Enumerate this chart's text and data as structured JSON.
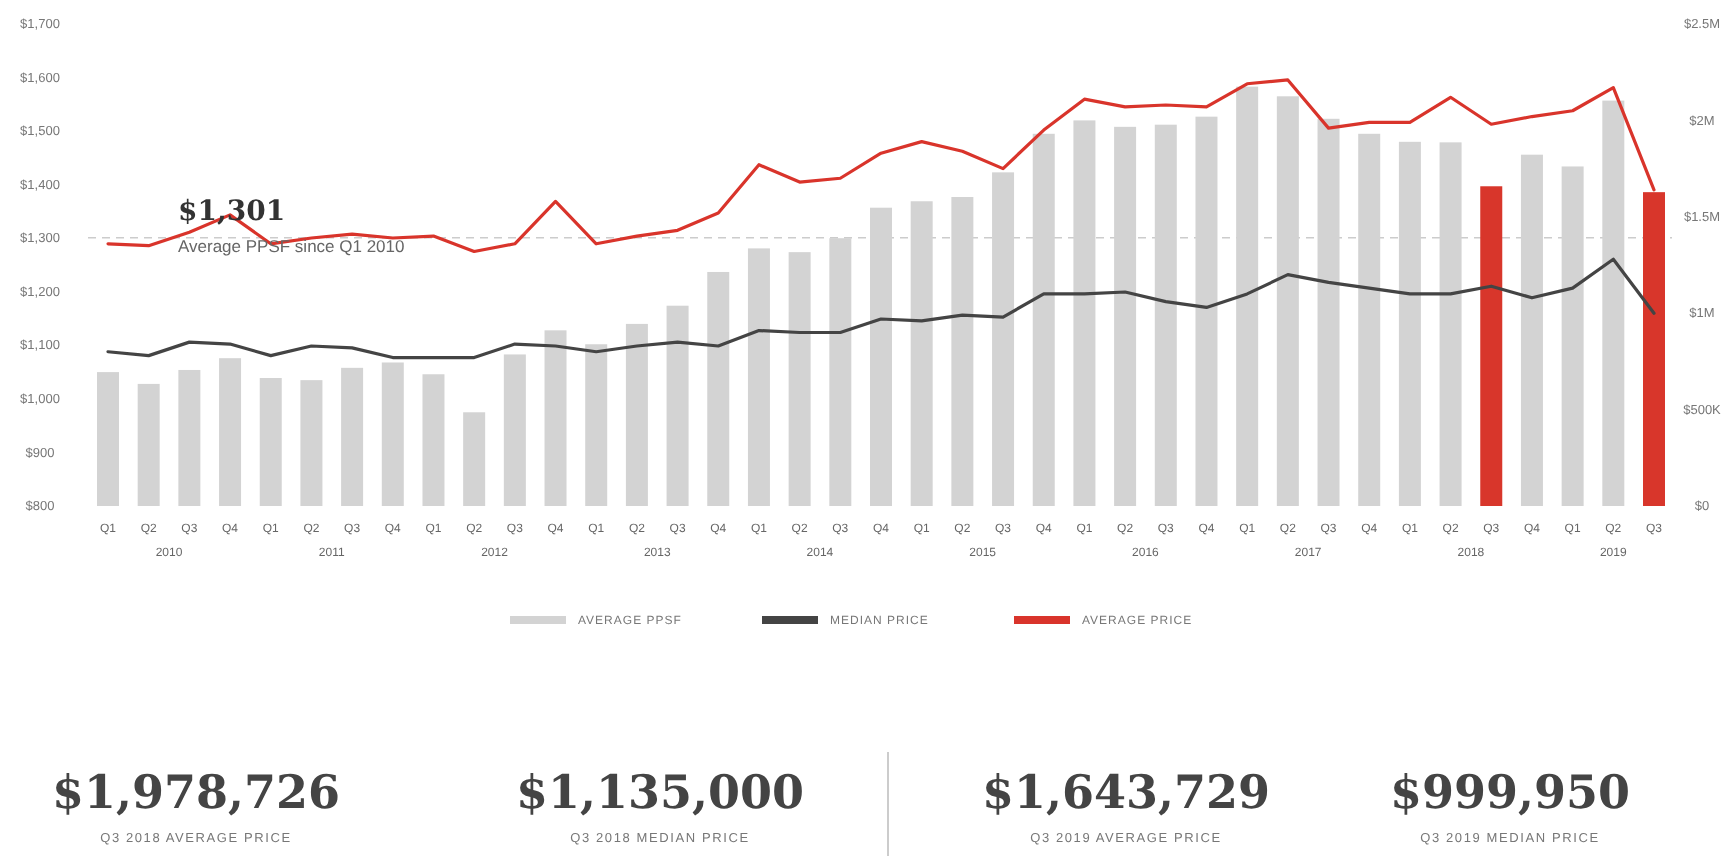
{
  "chart_data": {
    "type": "bar",
    "categories": [
      "Q1",
      "Q2",
      "Q3",
      "Q4",
      "Q1",
      "Q2",
      "Q3",
      "Q4",
      "Q1",
      "Q2",
      "Q3",
      "Q4",
      "Q1",
      "Q2",
      "Q3",
      "Q4",
      "Q1",
      "Q2",
      "Q3",
      "Q4",
      "Q1",
      "Q2",
      "Q3",
      "Q4",
      "Q1",
      "Q2",
      "Q3",
      "Q4",
      "Q1",
      "Q2",
      "Q3",
      "Q4",
      "Q1",
      "Q2",
      "Q3",
      "Q4",
      "Q1",
      "Q2",
      "Q3"
    ],
    "series": [
      {
        "name": "AVERAGE PPSF",
        "color": "#d3d3d3",
        "colors": [
          "#d3d3d3",
          "#d3d3d3",
          "#d3d3d3",
          "#d3d3d3",
          "#d3d3d3",
          "#d3d3d3",
          "#d3d3d3",
          "#d3d3d3",
          "#d3d3d3",
          "#d3d3d3",
          "#d3d3d3",
          "#d3d3d3",
          "#d3d3d3",
          "#d3d3d3",
          "#d3d3d3",
          "#d3d3d3",
          "#d3d3d3",
          "#d3d3d3",
          "#d3d3d3",
          "#d3d3d3",
          "#d3d3d3",
          "#d3d3d3",
          "#d3d3d3",
          "#d3d3d3",
          "#d3d3d3",
          "#d3d3d3",
          "#d3d3d3",
          "#d3d3d3",
          "#d3d3d3",
          "#d3d3d3",
          "#d3d3d3",
          "#d3d3d3",
          "#d3d3d3",
          "#d3d3d3",
          "#d8362b",
          "#d3d3d3",
          "#d3d3d3",
          "#d3d3d3",
          "#d8362b"
        ],
        "values": [
          1050,
          1028,
          1054,
          1076,
          1039,
          1035,
          1058,
          1068,
          1046,
          975,
          1083,
          1128,
          1102,
          1140,
          1174,
          1237,
          1281,
          1274,
          1300,
          1357,
          1369,
          1377,
          1423,
          1495,
          1520,
          1508,
          1512,
          1527,
          1583,
          1565,
          1523,
          1495,
          1480,
          1479,
          1397,
          1456,
          1434,
          1557,
          1386
        ]
      },
      {
        "name": "MEDIAN PRICE",
        "type": "line",
        "axis": "y2",
        "color": "#444444",
        "values": [
          800000,
          780000,
          850000,
          840000,
          780000,
          830000,
          820000,
          770000,
          770000,
          770000,
          840000,
          830000,
          800000,
          830000,
          850000,
          830000,
          910000,
          900000,
          900000,
          970000,
          960000,
          990000,
          980000,
          1100000,
          1100000,
          1110000,
          1060000,
          1030000,
          1100000,
          1200000,
          1160000,
          1130000,
          1100000,
          1100000,
          1140000,
          1080000,
          1130000,
          1280000,
          1000000
        ]
      },
      {
        "name": "AVERAGE PRICE",
        "type": "line",
        "axis": "y2",
        "color": "#d9342b",
        "values": [
          1360000,
          1350000,
          1420000,
          1510000,
          1360000,
          1390000,
          1410000,
          1390000,
          1400000,
          1320000,
          1360000,
          1580000,
          1360000,
          1400000,
          1430000,
          1520000,
          1770000,
          1680000,
          1700000,
          1830000,
          1890000,
          1840000,
          1750000,
          1950000,
          2110000,
          2070000,
          2080000,
          2070000,
          2190000,
          2210000,
          1960000,
          1990000,
          1990000,
          2120000,
          1980000,
          2020000,
          2050000,
          2170000,
          1640000
        ]
      }
    ],
    "ylim": [
      800,
      1700
    ],
    "yticks": [
      {
        "value": 800,
        "label": "$800"
      },
      {
        "value": 900,
        "label": "$900"
      },
      {
        "value": 1000,
        "label": "$1,000"
      },
      {
        "value": 1100,
        "label": "$1,100"
      },
      {
        "value": 1200,
        "label": "$1,200"
      },
      {
        "value": 1300,
        "label": "$1,300"
      },
      {
        "value": 1400,
        "label": "$1,400"
      },
      {
        "value": 1500,
        "label": "$1,500"
      },
      {
        "value": 1600,
        "label": "$1,600"
      },
      {
        "value": 1700,
        "label": "$1,700"
      }
    ],
    "y2lim": [
      0,
      2500000
    ],
    "y2ticks": [
      {
        "value": 0,
        "label": "$0"
      },
      {
        "value": 500000,
        "label": "$500K"
      },
      {
        "value": 1000000,
        "label": "$1M"
      },
      {
        "value": 1500000,
        "label": "$1.5M"
      },
      {
        "value": 2000000,
        "label": "$2M"
      },
      {
        "value": 2500000,
        "label": "$2.5M"
      }
    ],
    "ref_lines": [
      {
        "axis": "y",
        "value": 1301,
        "label": "$1,301",
        "color": "#cccccc",
        "line_style": "dashed"
      }
    ],
    "annotations": [
      "Average PPSF since Q1 2010",
      "2010",
      "2011",
      "2012",
      "2013",
      "2014",
      "2015",
      "2016",
      "2017",
      "2018",
      "2019",
      "$1,978,726",
      "Q3 2018 AVERAGE PRICE",
      "$1,135,000",
      "Q3 2018 MEDIAN PRICE",
      "$1,643,729",
      "Q3 2019 AVERAGE PRICE",
      "$999,950",
      "Q3 2019 MEDIAN PRICE"
    ],
    "legend": "bottom",
    "marker": "none"
  }
}
